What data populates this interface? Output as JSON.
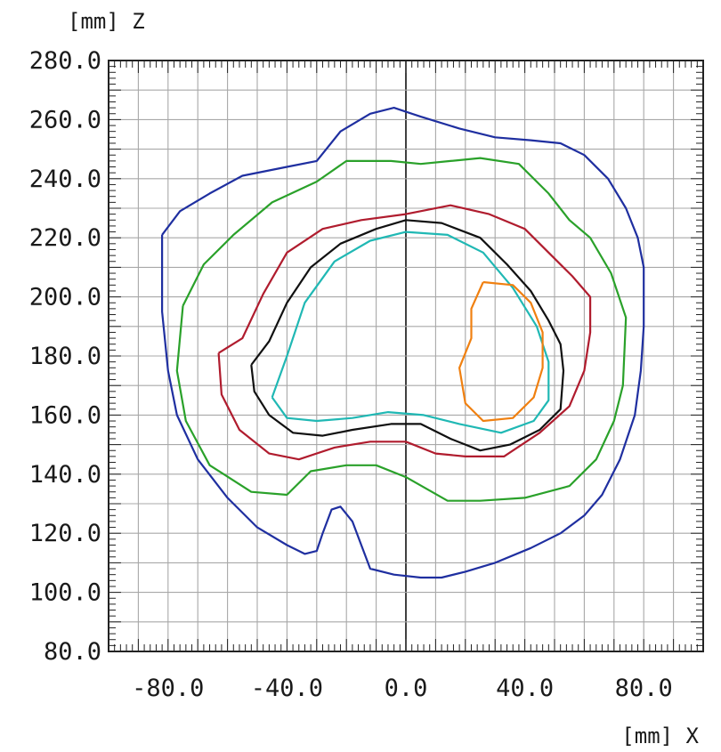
{
  "chart_data": {
    "type": "line",
    "title": "",
    "xlabel": "[mm] X",
    "ylabel": "[mm] Z",
    "xlim": [
      -100,
      100
    ],
    "ylim": [
      80,
      280
    ],
    "grid": true,
    "x_ticks": [
      "-80.0",
      "-40.0",
      "0.0",
      "40.0",
      "80.0"
    ],
    "y_ticks": [
      "280.0",
      "260.0",
      "240.0",
      "220.0",
      "200.0",
      "180.0",
      "160.0",
      "140.0",
      "120.0",
      "100.0",
      "80.0"
    ],
    "series": [
      {
        "color": "#1f2fa0",
        "style": "solid",
        "points": [
          [
            -82,
            221
          ],
          [
            -76,
            229
          ],
          [
            -66,
            235
          ],
          [
            -55,
            241
          ],
          [
            -40,
            244
          ],
          [
            -30,
            246
          ],
          [
            -22,
            256
          ],
          [
            -12,
            262
          ],
          [
            -4,
            264
          ],
          [
            5,
            261
          ],
          [
            18,
            257
          ],
          [
            30,
            254
          ],
          [
            42,
            253
          ],
          [
            52,
            252
          ],
          [
            60,
            248
          ],
          [
            68,
            240
          ],
          [
            74,
            230
          ],
          [
            78,
            220
          ],
          [
            80,
            210
          ],
          [
            80,
            190
          ],
          [
            79,
            175
          ],
          [
            77,
            160
          ],
          [
            72,
            145
          ],
          [
            66,
            133
          ],
          [
            60,
            126
          ],
          [
            52,
            120
          ],
          [
            42,
            115
          ],
          [
            30,
            110
          ],
          [
            20,
            107
          ],
          [
            12,
            105
          ],
          [
            5,
            105
          ],
          [
            -4,
            106
          ],
          [
            -12,
            108
          ],
          [
            -15,
            116
          ],
          [
            -18,
            124
          ],
          [
            -22,
            129
          ],
          [
            -25,
            128
          ],
          [
            -28,
            120
          ],
          [
            -30,
            114
          ],
          [
            -34,
            113
          ],
          [
            -40,
            116
          ],
          [
            -50,
            122
          ],
          [
            -60,
            132
          ],
          [
            -70,
            145
          ],
          [
            -77,
            160
          ],
          [
            -80,
            175
          ],
          [
            -82,
            195
          ],
          [
            -82,
            221
          ]
        ]
      },
      {
        "color": "#2aa12a",
        "style": "solid",
        "points": [
          [
            -75,
            197
          ],
          [
            -68,
            211
          ],
          [
            -58,
            221
          ],
          [
            -45,
            232
          ],
          [
            -30,
            239
          ],
          [
            -20,
            246
          ],
          [
            -5,
            246
          ],
          [
            5,
            245
          ],
          [
            15,
            246
          ],
          [
            25,
            247
          ],
          [
            38,
            245
          ],
          [
            48,
            235
          ],
          [
            55,
            226
          ],
          [
            62,
            220
          ],
          [
            69,
            208
          ],
          [
            74,
            193
          ],
          [
            73,
            170
          ],
          [
            70,
            158
          ],
          [
            64,
            145
          ],
          [
            55,
            136
          ],
          [
            40,
            132
          ],
          [
            25,
            131
          ],
          [
            18,
            131
          ],
          [
            14,
            131
          ],
          [
            0,
            139
          ],
          [
            -10,
            143
          ],
          [
            -20,
            143
          ],
          [
            -32,
            141
          ],
          [
            -40,
            133
          ],
          [
            -52,
            134
          ],
          [
            -66,
            143
          ],
          [
            -74,
            158
          ],
          [
            -77,
            175
          ],
          [
            -75,
            197
          ]
        ]
      },
      {
        "color": "#b01c2e",
        "style": "solid",
        "points": [
          [
            -63,
            181
          ],
          [
            -55,
            186
          ],
          [
            -48,
            201
          ],
          [
            -40,
            215
          ],
          [
            -28,
            223
          ],
          [
            -15,
            226
          ],
          [
            0,
            228
          ],
          [
            15,
            231
          ],
          [
            28,
            228
          ],
          [
            40,
            223
          ],
          [
            48,
            215
          ],
          [
            56,
            207
          ],
          [
            62,
            200
          ],
          [
            62,
            188
          ],
          [
            60,
            175
          ],
          [
            55,
            163
          ],
          [
            45,
            154
          ],
          [
            33,
            146
          ],
          [
            20,
            146
          ],
          [
            10,
            147
          ],
          [
            0,
            151
          ],
          [
            -12,
            151
          ],
          [
            -24,
            149
          ],
          [
            -36,
            145
          ],
          [
            -46,
            147
          ],
          [
            -56,
            155
          ],
          [
            -62,
            167
          ],
          [
            -63,
            181
          ]
        ]
      },
      {
        "color": "#111111",
        "style": "solid",
        "points": [
          [
            -52,
            177
          ],
          [
            -46,
            185
          ],
          [
            -40,
            198
          ],
          [
            -32,
            210
          ],
          [
            -22,
            218
          ],
          [
            -10,
            223
          ],
          [
            0,
            226
          ],
          [
            12,
            225
          ],
          [
            25,
            220
          ],
          [
            34,
            211
          ],
          [
            42,
            202
          ],
          [
            48,
            192
          ],
          [
            52,
            184
          ],
          [
            53,
            175
          ],
          [
            52,
            162
          ],
          [
            45,
            155
          ],
          [
            35,
            150
          ],
          [
            25,
            148
          ],
          [
            15,
            152
          ],
          [
            5,
            157
          ],
          [
            -5,
            157
          ],
          [
            -18,
            155
          ],
          [
            -28,
            153
          ],
          [
            -38,
            154
          ],
          [
            -46,
            160
          ],
          [
            -51,
            168
          ],
          [
            -52,
            177
          ]
        ]
      },
      {
        "color": "#20b8b4",
        "style": "solid",
        "points": [
          [
            -45,
            166
          ],
          [
            -40,
            180
          ],
          [
            -34,
            198
          ],
          [
            -24,
            212
          ],
          [
            -12,
            219
          ],
          [
            0,
            222
          ],
          [
            14,
            221
          ],
          [
            26,
            215
          ],
          [
            36,
            203
          ],
          [
            44,
            190
          ],
          [
            48,
            178
          ],
          [
            48,
            165
          ],
          [
            43,
            158
          ],
          [
            32,
            154
          ],
          [
            18,
            157
          ],
          [
            6,
            160
          ],
          [
            -6,
            161
          ],
          [
            -18,
            159
          ],
          [
            -30,
            158
          ],
          [
            -40,
            159
          ],
          [
            -45,
            166
          ]
        ]
      },
      {
        "color": "#f08010",
        "style": "solid",
        "points": [
          [
            26,
            205
          ],
          [
            36,
            204
          ],
          [
            42,
            198
          ],
          [
            46,
            188
          ],
          [
            46,
            176
          ],
          [
            43,
            166
          ],
          [
            36,
            159
          ],
          [
            26,
            158
          ],
          [
            20,
            164
          ],
          [
            18,
            176
          ],
          [
            22,
            186
          ],
          [
            22,
            196
          ],
          [
            26,
            205
          ]
        ]
      }
    ]
  }
}
